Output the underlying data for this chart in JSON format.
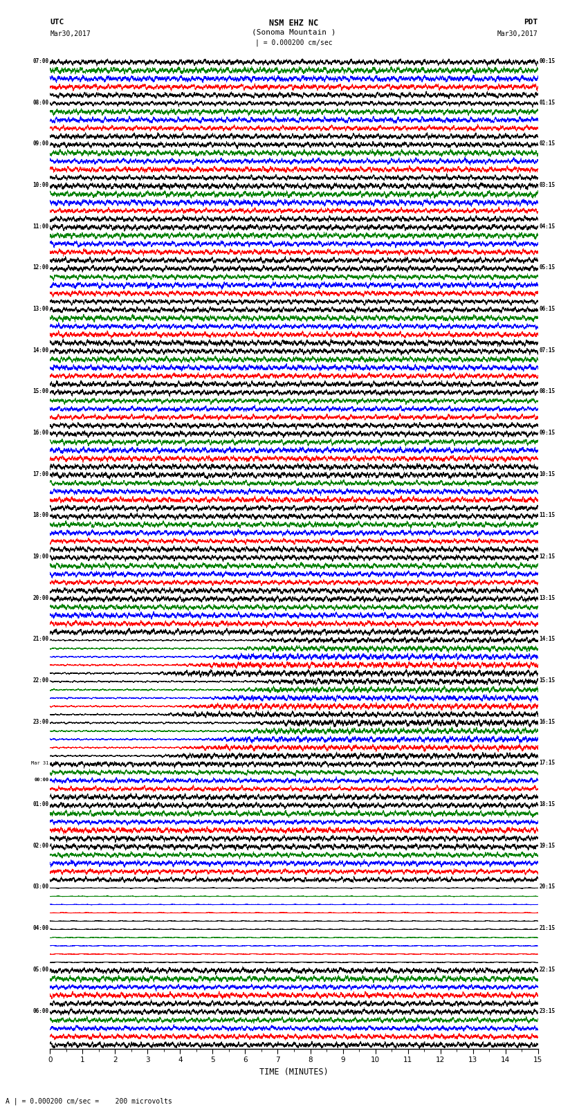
{
  "title_line1": "NSM EHZ NC",
  "title_line2": "(Sonoma Mountain )",
  "title_line3": "| = 0.000200 cm/sec",
  "left_label_line1": "UTC",
  "left_label_line2": "Mar30,2017",
  "right_label_line1": "PDT",
  "right_label_line2": "Mar30,2017",
  "xlabel": "TIME (MINUTES)",
  "bottom_note": "A | = 0.000200 cm/sec =    200 microvolts",
  "utc_times": [
    "07:00",
    "08:00",
    "09:00",
    "10:00",
    "11:00",
    "12:00",
    "13:00",
    "14:00",
    "15:00",
    "16:00",
    "17:00",
    "18:00",
    "19:00",
    "20:00",
    "21:00",
    "22:00",
    "23:00",
    "Mar 31\n00:00",
    "01:00",
    "02:00",
    "03:00",
    "04:00",
    "05:00",
    "06:00"
  ],
  "pdt_times": [
    "00:15",
    "01:15",
    "02:15",
    "03:15",
    "04:15",
    "05:15",
    "06:15",
    "07:15",
    "08:15",
    "09:15",
    "10:15",
    "11:15",
    "12:15",
    "13:15",
    "14:15",
    "15:15",
    "16:15",
    "17:15",
    "18:15",
    "19:15",
    "20:15",
    "21:15",
    "22:15",
    "23:15"
  ],
  "n_rows": 24,
  "colors": [
    "black",
    "red",
    "blue",
    "green",
    "black"
  ],
  "x_min": 0,
  "x_max": 15,
  "x_ticks": [
    0,
    1,
    2,
    3,
    4,
    5,
    6,
    7,
    8,
    9,
    10,
    11,
    12,
    13,
    14,
    15
  ],
  "bg_color": "white",
  "linewidth": 0.4,
  "dpi": 100,
  "fig_width": 8.5,
  "fig_height": 16.13
}
